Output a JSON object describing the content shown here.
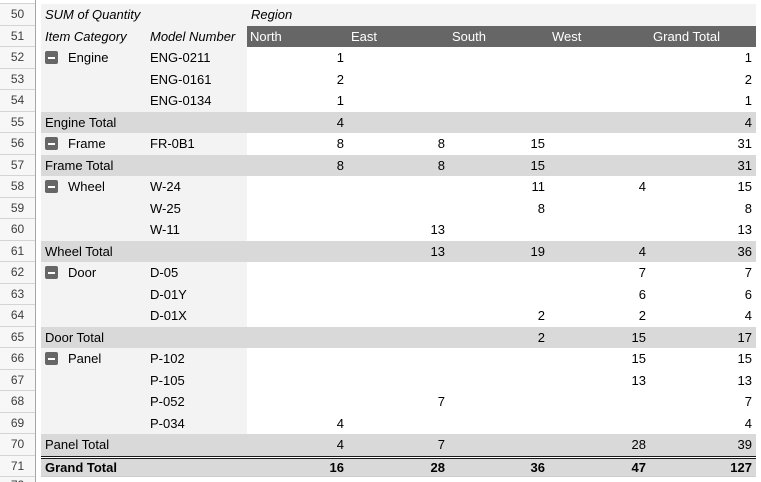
{
  "colors": {
    "column_header_bg": "#666666",
    "column_header_text": "#ffffff",
    "label_area_bg": "#f3f3f3",
    "total_row_bg": "#d9d9d9",
    "gutter_bg": "#f7f7f7",
    "grand_total_border": "#1a1a1a"
  },
  "icons": {
    "collapse_button": "minus-icon"
  },
  "gutter": {
    "row_numbers": [
      "50",
      "51",
      "52",
      "53",
      "54",
      "55",
      "56",
      "57",
      "58",
      "59",
      "60",
      "61",
      "62",
      "63",
      "64",
      "65",
      "66",
      "67",
      "68",
      "69",
      "70",
      "71",
      "72"
    ]
  },
  "pivot": {
    "title": "SUM of Quantity",
    "region_label": "Region",
    "row_headers": [
      "Item Category",
      "Model Number"
    ],
    "columns": [
      "North",
      "East",
      "South",
      "West",
      "Grand Total"
    ],
    "rows": [
      {
        "n": "52",
        "type": "data",
        "category": "Engine",
        "has_collapse": true,
        "model": "ENG-0211",
        "values": [
          "1",
          "",
          "",
          "",
          "1"
        ]
      },
      {
        "n": "53",
        "type": "data",
        "category": "",
        "has_collapse": false,
        "model": "ENG-0161",
        "values": [
          "2",
          "",
          "",
          "",
          "2"
        ]
      },
      {
        "n": "54",
        "type": "data",
        "category": "",
        "has_collapse": false,
        "model": "ENG-0134",
        "values": [
          "1",
          "",
          "",
          "",
          "1"
        ]
      },
      {
        "n": "55",
        "type": "total",
        "label": "Engine Total",
        "values": [
          "4",
          "",
          "",
          "",
          "4"
        ]
      },
      {
        "n": "56",
        "type": "data",
        "category": "Frame",
        "has_collapse": true,
        "model": "FR-0B1",
        "values": [
          "8",
          "8",
          "15",
          "",
          "31"
        ]
      },
      {
        "n": "57",
        "type": "total",
        "label": "Frame Total",
        "values": [
          "8",
          "8",
          "15",
          "",
          "31"
        ]
      },
      {
        "n": "58",
        "type": "data",
        "category": "Wheel",
        "has_collapse": true,
        "model": "W-24",
        "values": [
          "",
          "",
          "11",
          "4",
          "15"
        ]
      },
      {
        "n": "59",
        "type": "data",
        "category": "",
        "has_collapse": false,
        "model": "W-25",
        "values": [
          "",
          "",
          "8",
          "",
          "8"
        ]
      },
      {
        "n": "60",
        "type": "data",
        "category": "",
        "has_collapse": false,
        "model": "W-11",
        "values": [
          "",
          "13",
          "",
          "",
          "13"
        ]
      },
      {
        "n": "61",
        "type": "total",
        "label": "Wheel Total",
        "values": [
          "",
          "13",
          "19",
          "4",
          "36"
        ]
      },
      {
        "n": "62",
        "type": "data",
        "category": "Door",
        "has_collapse": true,
        "model": "D-05",
        "values": [
          "",
          "",
          "",
          "7",
          "7"
        ]
      },
      {
        "n": "63",
        "type": "data",
        "category": "",
        "has_collapse": false,
        "model": "D-01Y",
        "values": [
          "",
          "",
          "",
          "6",
          "6"
        ]
      },
      {
        "n": "64",
        "type": "data",
        "category": "",
        "has_collapse": false,
        "model": "D-01X",
        "values": [
          "",
          "",
          "2",
          "2",
          "4"
        ]
      },
      {
        "n": "65",
        "type": "total",
        "label": "Door Total",
        "values": [
          "",
          "",
          "2",
          "15",
          "17"
        ]
      },
      {
        "n": "66",
        "type": "data",
        "category": "Panel",
        "has_collapse": true,
        "model": "P-102",
        "values": [
          "",
          "",
          "",
          "15",
          "15"
        ]
      },
      {
        "n": "67",
        "type": "data",
        "category": "",
        "has_collapse": false,
        "model": "P-105",
        "values": [
          "",
          "",
          "",
          "13",
          "13"
        ]
      },
      {
        "n": "68",
        "type": "data",
        "category": "",
        "has_collapse": false,
        "model": "P-052",
        "values": [
          "",
          "7",
          "",
          "",
          "7"
        ]
      },
      {
        "n": "69",
        "type": "data",
        "category": "",
        "has_collapse": false,
        "model": "P-034",
        "values": [
          "4",
          "",
          "",
          "",
          "4"
        ]
      },
      {
        "n": "70",
        "type": "total",
        "label": "Panel Total",
        "values": [
          "4",
          "7",
          "",
          "28",
          "39"
        ]
      },
      {
        "n": "71",
        "type": "grand",
        "label": "Grand Total",
        "values": [
          "16",
          "28",
          "36",
          "47",
          "127"
        ]
      }
    ]
  }
}
